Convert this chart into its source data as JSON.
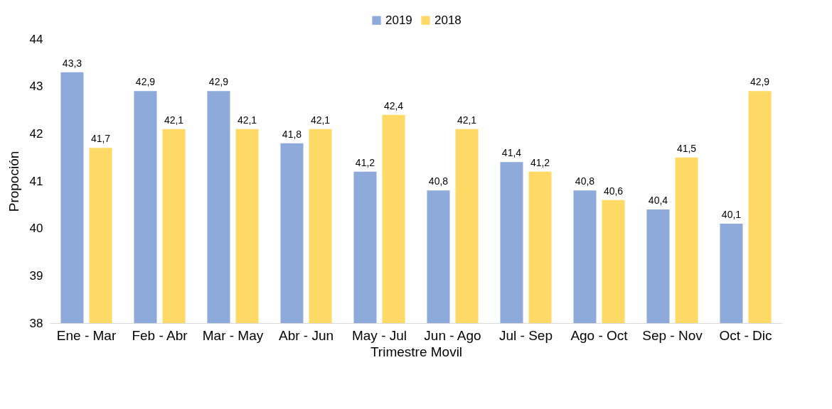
{
  "chart_data": {
    "type": "bar",
    "xlabel": "Trimestre Movil",
    "ylabel": "Propoción",
    "categories": [
      "Ene - Mar",
      "Feb - Abr",
      "Mar - May",
      "Abr - Jun",
      "May - Jul",
      "Jun - Ago",
      "Jul - Sep",
      "Ago - Oct",
      "Sep - Nov",
      "Oct - Dic"
    ],
    "series": [
      {
        "name": "2019",
        "color": "#8eaadb",
        "values": [
          43.3,
          42.9,
          42.9,
          41.8,
          41.2,
          40.8,
          41.4,
          40.8,
          40.4,
          40.1
        ],
        "value_labels": [
          "43,3",
          "42,9",
          "42,9",
          "41,8",
          "41,2",
          "40,8",
          "41,4",
          "40,8",
          "40,4",
          "40,1"
        ]
      },
      {
        "name": "2018",
        "color": "#ffd966",
        "values": [
          41.7,
          42.1,
          42.1,
          42.1,
          42.4,
          42.1,
          41.2,
          40.6,
          41.5,
          42.9
        ],
        "value_labels": [
          "41,7",
          "42,1",
          "42,1",
          "42,1",
          "42,4",
          "42,1",
          "41,2",
          "40,6",
          "41,5",
          "42,9"
        ]
      }
    ],
    "ylim": [
      38,
      44
    ],
    "yticks": [
      38,
      39,
      40,
      41,
      42,
      43,
      44
    ],
    "grid": false,
    "legend": "top"
  }
}
